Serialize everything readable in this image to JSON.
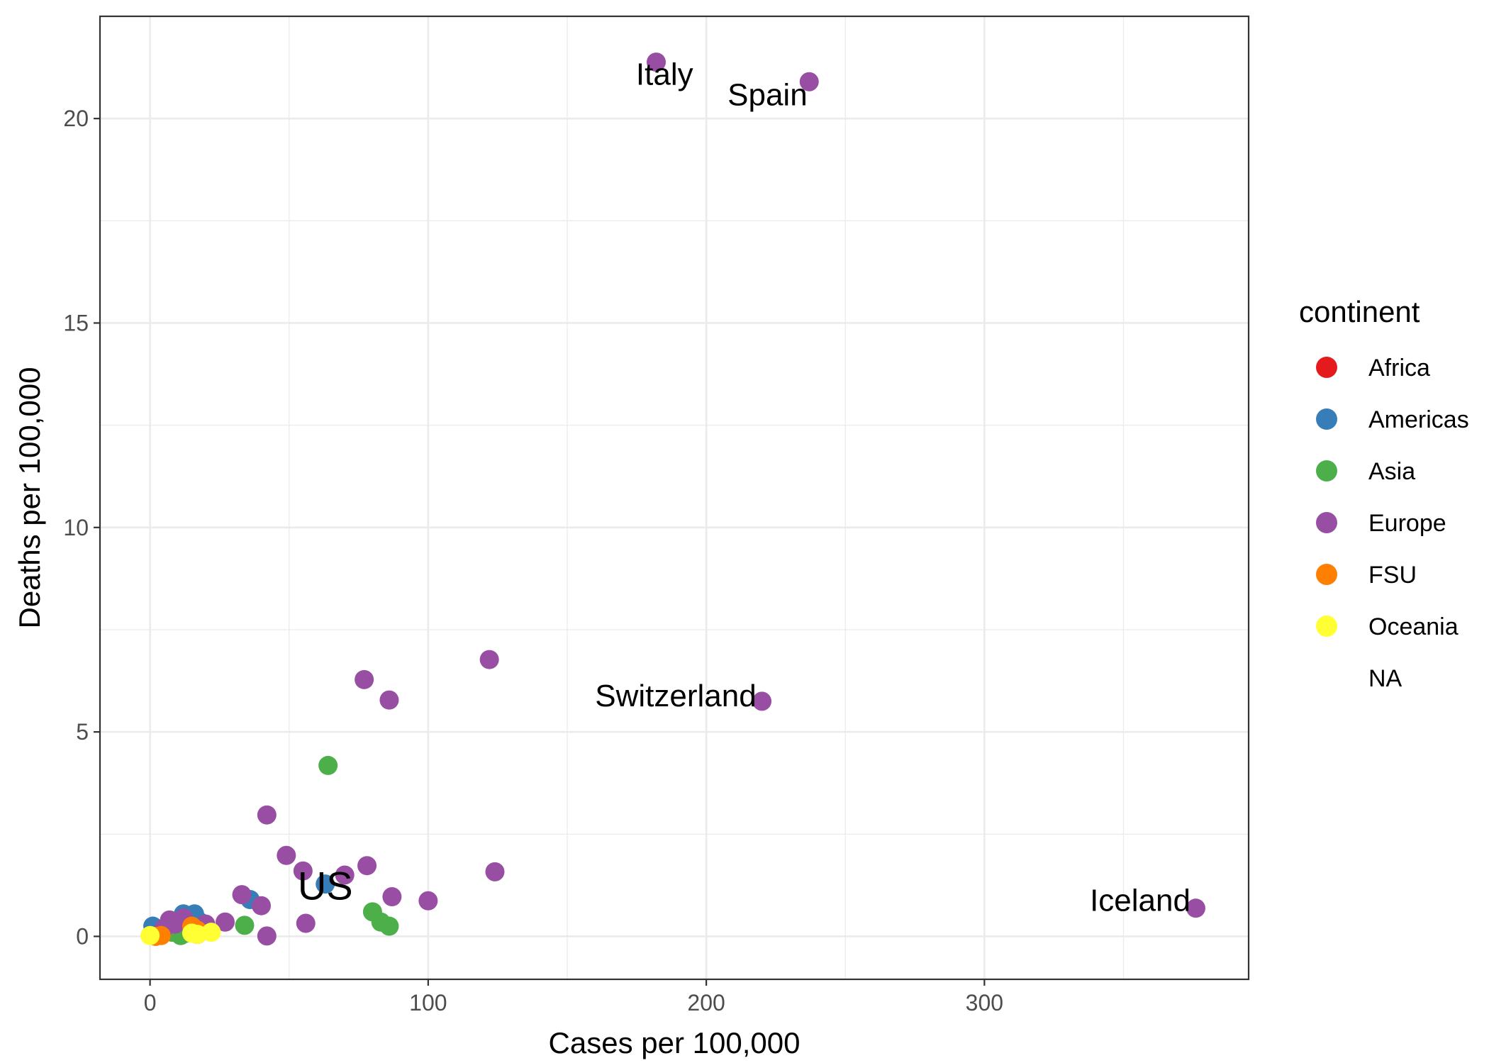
{
  "chart_data": {
    "type": "scatter",
    "xlabel": "Cases per 100,000",
    "ylabel": "Deaths per 100,000",
    "xlim": [
      -18,
      395
    ],
    "ylim": [
      -1.05,
      22.5
    ],
    "x_ticks": [
      0,
      100,
      200,
      300
    ],
    "x_tick_labels": [
      "0",
      "100",
      "200",
      "300"
    ],
    "y_ticks": [
      0,
      5,
      10,
      15,
      20
    ],
    "y_tick_labels": [
      "0",
      "5",
      "10",
      "15",
      "20"
    ],
    "grid": true,
    "legend": {
      "title": "continent",
      "position": "right",
      "entries": [
        {
          "name": "Africa",
          "color": "#E41A1C"
        },
        {
          "name": "Americas",
          "color": "#377EB8"
        },
        {
          "name": "Asia",
          "color": "#4DAF4A"
        },
        {
          "name": "Europe",
          "color": "#984EA3"
        },
        {
          "name": "FSU",
          "color": "#FF7F00"
        },
        {
          "name": "Oceania",
          "color": "#FFFF33"
        },
        {
          "name": "NA",
          "color": null
        }
      ]
    },
    "series": [
      {
        "name": "Africa",
        "color": "#E41A1C",
        "points": [
          [
            1,
            0.02
          ],
          [
            3,
            0.05
          ],
          [
            5,
            0.1
          ],
          [
            10,
            0.08
          ],
          [
            14,
            0.15
          ],
          [
            17,
            0.05
          ]
        ]
      },
      {
        "name": "Americas",
        "color": "#377EB8",
        "points": [
          [
            1,
            0.25
          ],
          [
            3,
            0.15
          ],
          [
            6,
            0.2
          ],
          [
            10,
            0.35
          ],
          [
            12,
            0.55
          ],
          [
            16,
            0.55
          ],
          [
            18,
            0.35
          ],
          [
            36,
            0.9
          ],
          [
            63,
            1.28
          ]
        ]
      },
      {
        "name": "Asia",
        "color": "#4DAF4A",
        "points": [
          [
            4,
            0.05
          ],
          [
            8,
            0.1
          ],
          [
            11,
            0.02
          ],
          [
            13,
            0.08
          ],
          [
            20,
            0.15
          ],
          [
            34,
            0.27
          ],
          [
            64,
            4.18
          ],
          [
            80,
            0.6
          ],
          [
            83,
            0.35
          ],
          [
            86,
            0.25
          ]
        ]
      },
      {
        "name": "Europe",
        "color": "#984EA3",
        "points": [
          [
            5,
            0.2
          ],
          [
            7,
            0.4
          ],
          [
            9,
            0.3
          ],
          [
            12,
            0.45
          ],
          [
            15,
            0.25
          ],
          [
            20,
            0.3
          ],
          [
            27,
            0.35
          ],
          [
            33,
            1.02
          ],
          [
            40,
            0.75
          ],
          [
            42,
            2.97
          ],
          [
            42,
            0.01
          ],
          [
            49,
            1.98
          ],
          [
            55,
            1.6
          ],
          [
            56,
            0.32
          ],
          [
            70,
            1.5
          ],
          [
            77,
            6.28
          ],
          [
            78,
            1.73
          ],
          [
            86,
            5.78
          ],
          [
            87,
            0.97
          ],
          [
            100,
            0.87
          ],
          [
            122,
            6.77
          ],
          [
            124,
            1.58
          ],
          [
            182,
            21.38
          ],
          [
            220,
            5.75
          ],
          [
            237,
            20.9
          ],
          [
            376,
            0.69
          ]
        ]
      },
      {
        "name": "FSU",
        "color": "#FF7F00",
        "points": [
          [
            2,
            0.0
          ],
          [
            4,
            0.02
          ],
          [
            15,
            0.25
          ],
          [
            17,
            0.15
          ]
        ]
      },
      {
        "name": "Oceania",
        "color": "#FFFF33",
        "points": [
          [
            0,
            0.02
          ],
          [
            15,
            0.08
          ],
          [
            17,
            0.05
          ],
          [
            22,
            0.1
          ]
        ]
      }
    ],
    "annotations": [
      {
        "text": "Italy",
        "x": 185,
        "y": 21.1,
        "size": "large"
      },
      {
        "text": "Spain",
        "x": 222,
        "y": 20.6,
        "size": "large"
      },
      {
        "text": "Switzerland",
        "x": 189,
        "y": 5.9,
        "size": "large"
      },
      {
        "text": "US",
        "x": 63,
        "y": 1.25,
        "size": "xlarge"
      },
      {
        "text": "Iceland",
        "x": 356,
        "y": 0.9,
        "size": "large"
      }
    ]
  }
}
